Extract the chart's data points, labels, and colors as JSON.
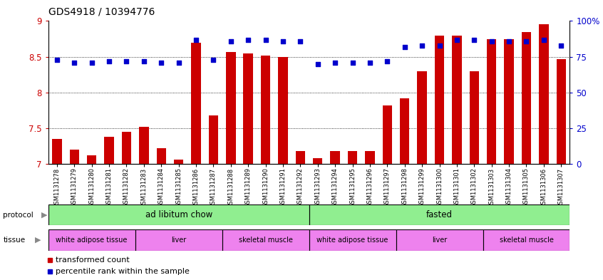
{
  "title": "GDS4918 / 10394776",
  "samples": [
    "GSM1131278",
    "GSM1131279",
    "GSM1131280",
    "GSM1131281",
    "GSM1131282",
    "GSM1131283",
    "GSM1131284",
    "GSM1131285",
    "GSM1131286",
    "GSM1131287",
    "GSM1131288",
    "GSM1131289",
    "GSM1131290",
    "GSM1131291",
    "GSM1131292",
    "GSM1131293",
    "GSM1131294",
    "GSM1131295",
    "GSM1131296",
    "GSM1131297",
    "GSM1131298",
    "GSM1131299",
    "GSM1131300",
    "GSM1131301",
    "GSM1131302",
    "GSM1131303",
    "GSM1131304",
    "GSM1131305",
    "GSM1131306",
    "GSM1131307"
  ],
  "bar_values": [
    7.35,
    7.2,
    7.12,
    7.38,
    7.45,
    7.52,
    7.22,
    7.06,
    8.7,
    7.68,
    8.57,
    8.55,
    8.52,
    8.5,
    7.18,
    7.08,
    7.18,
    7.18,
    7.18,
    7.82,
    7.92,
    8.3,
    8.8,
    8.8,
    8.3,
    8.75,
    8.75,
    8.85,
    8.95,
    8.47
  ],
  "dot_pct": [
    73,
    71,
    71,
    72,
    72,
    72,
    71,
    71,
    87,
    73,
    86,
    87,
    87,
    86,
    86,
    70,
    71,
    71,
    71,
    72,
    82,
    83,
    83,
    87,
    87,
    86,
    86,
    86,
    87,
    83
  ],
  "ylim_left": [
    7,
    9
  ],
  "ylim_right": [
    0,
    100
  ],
  "yticks_left": [
    7,
    7.5,
    8,
    8.5,
    9
  ],
  "ytick_right_vals": [
    0,
    25,
    50,
    75,
    100
  ],
  "ytick_right_labels": [
    "0",
    "25",
    "50",
    "75",
    "100%"
  ],
  "bar_color": "#cc0000",
  "dot_color": "#0000cc",
  "protocol_labels": [
    "ad libitum chow",
    "fasted"
  ],
  "protocol_xranges": [
    [
      0,
      15
    ],
    [
      15,
      30
    ]
  ],
  "protocol_color": "#90ee90",
  "tissue_labels": [
    "white adipose tissue",
    "liver",
    "skeletal muscle",
    "white adipose tissue",
    "liver",
    "skeletal muscle"
  ],
  "tissue_xranges": [
    [
      0,
      5
    ],
    [
      5,
      10
    ],
    [
      10,
      15
    ],
    [
      15,
      20
    ],
    [
      20,
      25
    ],
    [
      25,
      30
    ]
  ],
  "tissue_color": "#ee82ee",
  "legend_items": [
    "transformed count",
    "percentile rank within the sample"
  ],
  "legend_colors": [
    "#cc0000",
    "#0000cc"
  ],
  "xtick_bg_color": "#d3d3d3",
  "gridline_color": "#000000",
  "gridline_vals": [
    7.5,
    8.0,
    8.5
  ]
}
